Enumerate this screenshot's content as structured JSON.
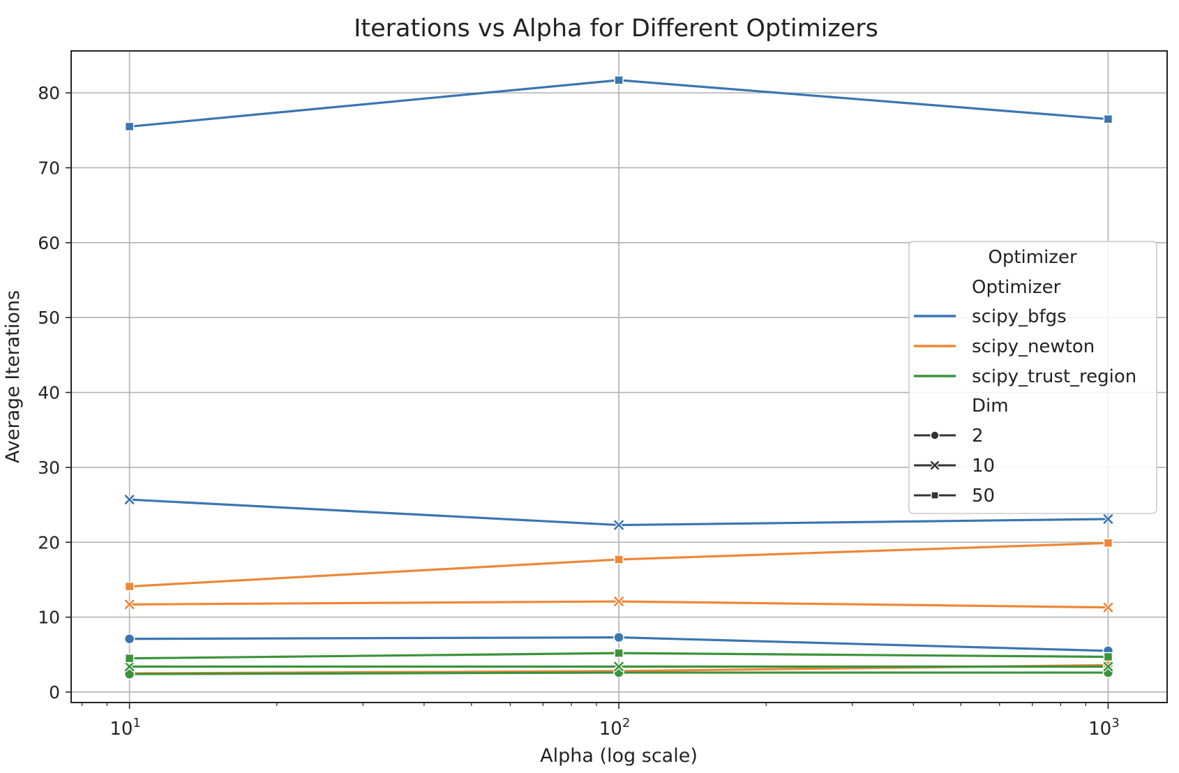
{
  "chart_data": {
    "type": "line",
    "title": "Iterations vs Alpha for Different Optimizers",
    "xlabel": "Alpha (log scale)",
    "ylabel": "Average Iterations",
    "x_scale": "log",
    "x": [
      10,
      100,
      1000
    ],
    "x_tick_labels": [
      {
        "base": "10",
        "exp": "1"
      },
      {
        "base": "10",
        "exp": "2"
      },
      {
        "base": "10",
        "exp": "3"
      }
    ],
    "y_ticks": [
      0,
      10,
      20,
      30,
      40,
      50,
      60,
      70,
      80
    ],
    "ylim": [
      -1.4,
      85.6
    ],
    "grid": true,
    "legend": {
      "placement": "center-right",
      "title": "Optimizer",
      "hue_header": "Optimizer",
      "style_header": "Dim",
      "hue_entries": [
        {
          "label": "scipy_bfgs",
          "color": "#3a75b0"
        },
        {
          "label": "scipy_newton",
          "color": "#ef8636"
        },
        {
          "label": "scipy_trust_region",
          "color": "#3b923b"
        }
      ],
      "style_entries": [
        {
          "label": "2",
          "marker": "circle"
        },
        {
          "label": "10",
          "marker": "x"
        },
        {
          "label": "50",
          "marker": "square"
        }
      ]
    },
    "series": [
      {
        "optimizer": "scipy_bfgs",
        "dim": "2",
        "color": "#3a75b0",
        "marker": "circle",
        "values": [
          7.1,
          7.3,
          5.5
        ]
      },
      {
        "optimizer": "scipy_bfgs",
        "dim": "10",
        "color": "#3a75b0",
        "marker": "x",
        "values": [
          25.7,
          22.3,
          23.1
        ]
      },
      {
        "optimizer": "scipy_bfgs",
        "dim": "50",
        "color": "#3a75b0",
        "marker": "square",
        "values": [
          75.5,
          81.7,
          76.5
        ]
      },
      {
        "optimizer": "scipy_newton",
        "dim": "2",
        "color": "#ef8636",
        "marker": "circle",
        "values": [
          2.5,
          2.8,
          3.6
        ]
      },
      {
        "optimizer": "scipy_newton",
        "dim": "10",
        "color": "#ef8636",
        "marker": "x",
        "values": [
          11.7,
          12.1,
          11.3
        ]
      },
      {
        "optimizer": "scipy_newton",
        "dim": "50",
        "color": "#ef8636",
        "marker": "square",
        "values": [
          14.1,
          17.7,
          19.9
        ]
      },
      {
        "optimizer": "scipy_trust_region",
        "dim": "2",
        "color": "#3b923b",
        "marker": "circle",
        "values": [
          2.4,
          2.6,
          2.6
        ]
      },
      {
        "optimizer": "scipy_trust_region",
        "dim": "10",
        "color": "#3b923b",
        "marker": "x",
        "values": [
          3.4,
          3.4,
          3.4
        ]
      },
      {
        "optimizer": "scipy_trust_region",
        "dim": "50",
        "color": "#3b923b",
        "marker": "square",
        "values": [
          4.5,
          5.2,
          4.7
        ]
      }
    ]
  }
}
